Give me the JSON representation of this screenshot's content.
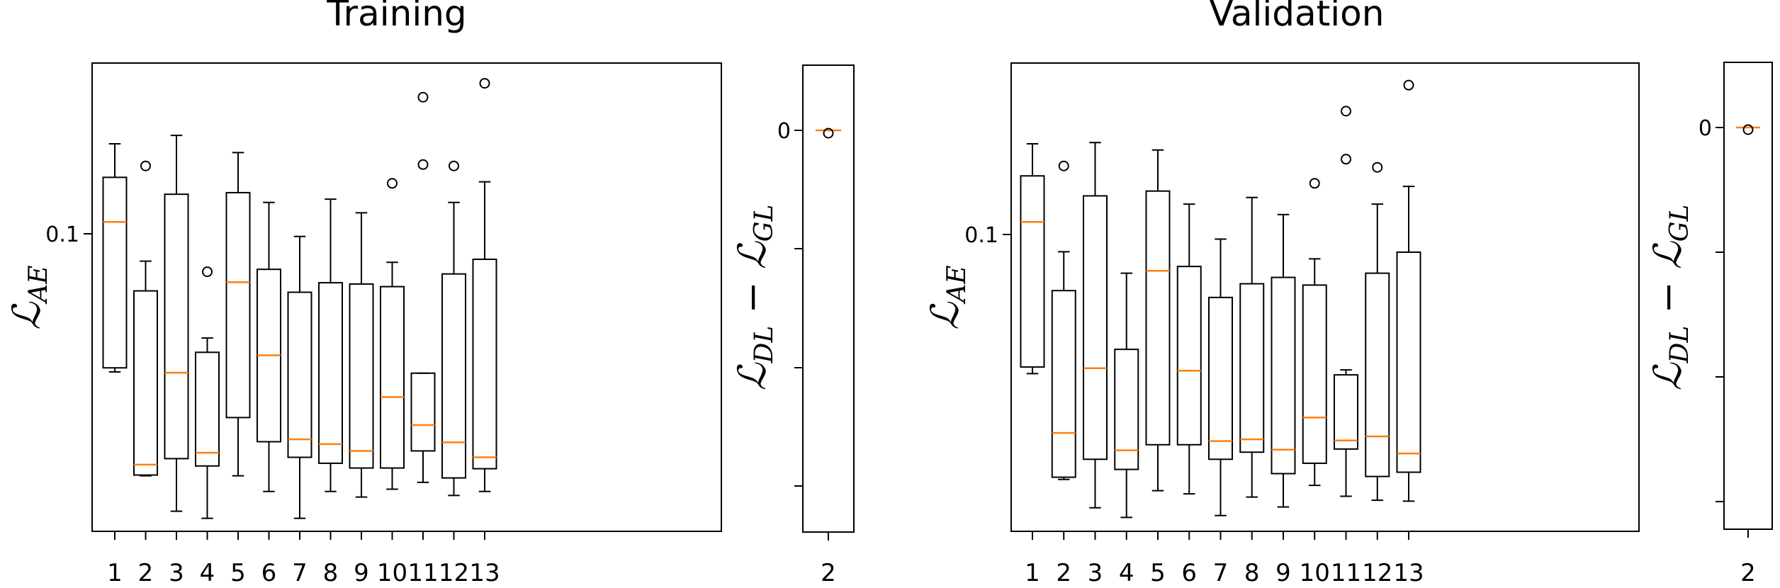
{
  "chart_data": [
    {
      "type": "box",
      "title": "Training",
      "ylabel": "L_AE",
      "ylabel_main": "ℒ",
      "ylabel_sub": "AE",
      "yscale": "log",
      "ylim": [
        0.0195,
        0.235
      ],
      "ytick_values": [
        0.1
      ],
      "ytick_labels": [
        "0.1"
      ],
      "categories": [
        "1",
        "2",
        "3",
        "4",
        "5",
        "6",
        "7",
        "8",
        "9",
        "10",
        "11",
        "12",
        "13"
      ],
      "boxes": [
        {
          "whislo": 0.0455,
          "q1": 0.0465,
          "med": 0.101,
          "q3": 0.128,
          "whishi": 0.153,
          "fliers": []
        },
        {
          "whislo": 0.0262,
          "q1": 0.0263,
          "med": 0.0278,
          "q3": 0.07,
          "whishi": 0.082,
          "fliers": [
            0.136
          ]
        },
        {
          "whislo": 0.0217,
          "q1": 0.0287,
          "med": 0.0453,
          "q3": 0.117,
          "whishi": 0.16,
          "fliers": []
        },
        {
          "whislo": 0.0209,
          "q1": 0.0276,
          "med": 0.0296,
          "q3": 0.0505,
          "whishi": 0.0545,
          "fliers": [
            0.0775
          ]
        },
        {
          "whislo": 0.0262,
          "q1": 0.0357,
          "med": 0.0733,
          "q3": 0.118,
          "whishi": 0.146,
          "fliers": []
        },
        {
          "whislo": 0.0241,
          "q1": 0.0314,
          "med": 0.0497,
          "q3": 0.0785,
          "whishi": 0.112,
          "fliers": []
        },
        {
          "whislo": 0.0209,
          "q1": 0.0289,
          "med": 0.0318,
          "q3": 0.0695,
          "whishi": 0.0935,
          "fliers": []
        },
        {
          "whislo": 0.0241,
          "q1": 0.028,
          "med": 0.031,
          "q3": 0.0731,
          "whishi": 0.114,
          "fliers": []
        },
        {
          "whislo": 0.0234,
          "q1": 0.0273,
          "med": 0.0299,
          "q3": 0.0726,
          "whishi": 0.106,
          "fliers": []
        },
        {
          "whislo": 0.0244,
          "q1": 0.0273,
          "med": 0.0398,
          "q3": 0.0716,
          "whishi": 0.0815,
          "fliers": [
            0.124
          ]
        },
        {
          "whislo": 0.0253,
          "q1": 0.0299,
          "med": 0.0343,
          "q3": 0.0452,
          "whishi": 0.0452,
          "fliers": [
            0.137,
            0.196
          ]
        },
        {
          "whislo": 0.0236,
          "q1": 0.0259,
          "med": 0.0313,
          "q3": 0.0766,
          "whishi": 0.112,
          "fliers": [
            0.136
          ]
        },
        {
          "whislo": 0.0241,
          "q1": 0.0272,
          "med": 0.0289,
          "q3": 0.0828,
          "whishi": 0.125,
          "fliers": [
            0.211
          ]
        }
      ],
      "inset": {
        "ylabel": "L_DL − L_GL",
        "ylabel_main": "ℒ",
        "ylabel_sub1": "DL",
        "ylabel_mid": " − ℒ",
        "ylabel_sub2": "GL",
        "ytick_labels": [
          "0",
          "",
          "",
          ""
        ],
        "category": "2",
        "box": {
          "whislo": -0.02,
          "q1": -0.02,
          "med": 0,
          "q3": 0,
          "whishi": 0,
          "fliers": [
            -0.04
          ]
        }
      }
    },
    {
      "type": "box",
      "title": "Validation",
      "ylabel": "L_AE",
      "ylabel_main": "ℒ",
      "ylabel_sub": "AE",
      "yscale": "log",
      "ylim": [
        0.0195,
        0.235
      ],
      "ytick_values": [
        0.1
      ],
      "ytick_labels": [
        "0.1"
      ],
      "categories": [
        "1",
        "2",
        "3",
        "4",
        "5",
        "6",
        "7",
        "8",
        "9",
        "10",
        "11",
        "12",
        "13"
      ],
      "boxes": [
        {
          "whislo": 0.0451,
          "q1": 0.0467,
          "med": 0.101,
          "q3": 0.129,
          "whishi": 0.153,
          "fliers": []
        },
        {
          "whislo": 0.0257,
          "q1": 0.026,
          "med": 0.0329,
          "q3": 0.0701,
          "whishi": 0.0862,
          "fliers": [
            0.136
          ]
        },
        {
          "whislo": 0.0221,
          "q1": 0.0286,
          "med": 0.0464,
          "q3": 0.116,
          "whishi": 0.154,
          "fliers": []
        },
        {
          "whislo": 0.021,
          "q1": 0.0271,
          "med": 0.03,
          "q3": 0.0513,
          "whishi": 0.0769,
          "fliers": []
        },
        {
          "whislo": 0.0242,
          "q1": 0.0309,
          "med": 0.0779,
          "q3": 0.119,
          "whishi": 0.148,
          "fliers": []
        },
        {
          "whislo": 0.0238,
          "q1": 0.0309,
          "med": 0.0458,
          "q3": 0.0797,
          "whishi": 0.111,
          "fliers": []
        },
        {
          "whislo": 0.0212,
          "q1": 0.0286,
          "med": 0.0315,
          "q3": 0.0676,
          "whishi": 0.0922,
          "fliers": []
        },
        {
          "whislo": 0.0234,
          "q1": 0.0297,
          "med": 0.0318,
          "q3": 0.0727,
          "whishi": 0.115,
          "fliers": []
        },
        {
          "whislo": 0.0222,
          "q1": 0.0265,
          "med": 0.0301,
          "q3": 0.0752,
          "whishi": 0.105,
          "fliers": []
        },
        {
          "whislo": 0.0249,
          "q1": 0.028,
          "med": 0.0357,
          "q3": 0.0722,
          "whishi": 0.083,
          "fliers": [
            0.124
          ]
        },
        {
          "whislo": 0.0235,
          "q1": 0.0302,
          "med": 0.0316,
          "q3": 0.0448,
          "whishi": 0.046,
          "fliers": [
            0.141,
            0.182
          ]
        },
        {
          "whislo": 0.023,
          "q1": 0.0261,
          "med": 0.0323,
          "q3": 0.0769,
          "whishi": 0.111,
          "fliers": [
            0.135
          ]
        },
        {
          "whislo": 0.0229,
          "q1": 0.0267,
          "med": 0.0295,
          "q3": 0.086,
          "whishi": 0.122,
          "fliers": [
            0.209
          ]
        }
      ],
      "inset": {
        "ylabel": "L_DL − L_GL",
        "ylabel_main": "ℒ",
        "ylabel_sub1": "DL",
        "ylabel_mid": " − ℒ",
        "ylabel_sub2": "GL",
        "ytick_labels": [
          "0",
          "",
          "",
          ""
        ],
        "category": "2",
        "box": {
          "whislo": -0.02,
          "q1": -0.02,
          "med": 0,
          "q3": 0,
          "whishi": 0,
          "fliers": [
            -0.04
          ]
        }
      }
    }
  ],
  "colors": {
    "box": "#000000",
    "median": "#ff7f0e",
    "background": "#ffffff"
  }
}
